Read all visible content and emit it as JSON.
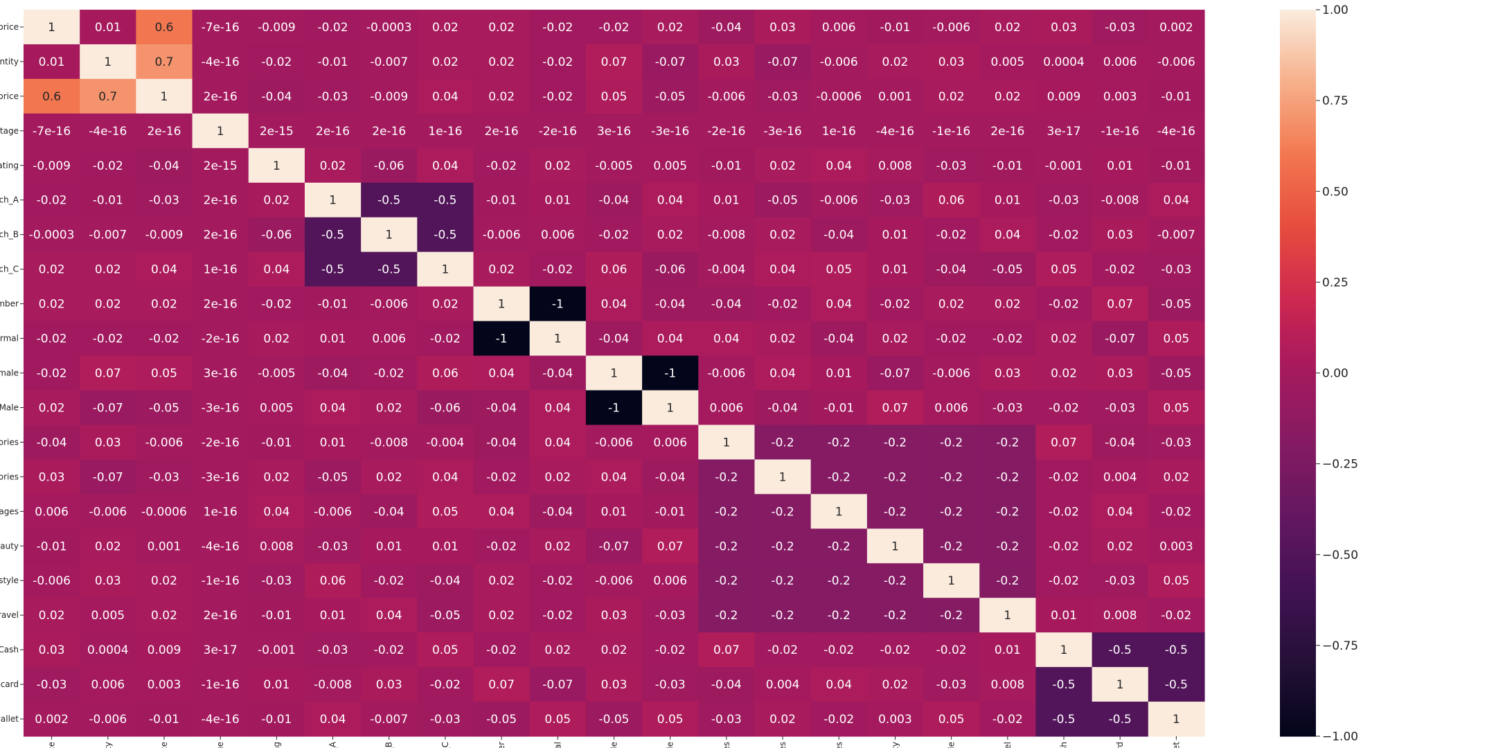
{
  "chart_data": {
    "type": "heatmap",
    "row_labels": [
      "_price",
      "antity",
      "_price",
      "ntage",
      "rating",
      "nch_A",
      "nch_B",
      "nch_C",
      "ember",
      "ormal",
      "emale",
      "_Male",
      "sories",
      "sories",
      "erages",
      "beauty",
      "estyle",
      "travel",
      "_Cash",
      "t card",
      "wallet"
    ],
    "col_labels": [
      "rice",
      "ntity",
      "rice",
      "tage",
      "ating",
      "h_A",
      "h_B",
      "h_C",
      "mber",
      "ormal",
      "male",
      "Male",
      "ories",
      "ories",
      "ages",
      "eauty",
      "style",
      "avel",
      "Cash",
      "card",
      "allet"
    ],
    "values": [
      [
        "1",
        "0.01",
        "0.6",
        "-7e-16",
        "-0.009",
        "-0.02",
        "-0.0003",
        "0.02",
        "0.02",
        "-0.02",
        "-0.02",
        "0.02",
        "-0.04",
        "0.03",
        "0.006",
        "-0.01",
        "-0.006",
        "0.02",
        "0.03",
        "-0.03",
        "0.002"
      ],
      [
        "0.01",
        "1",
        "0.7",
        "-4e-16",
        "-0.02",
        "-0.01",
        "-0.007",
        "0.02",
        "0.02",
        "-0.02",
        "0.07",
        "-0.07",
        "0.03",
        "-0.07",
        "-0.006",
        "0.02",
        "0.03",
        "0.005",
        "0.0004",
        "0.006",
        "-0.006"
      ],
      [
        "0.6",
        "0.7",
        "1",
        "2e-16",
        "-0.04",
        "-0.03",
        "-0.009",
        "0.04",
        "0.02",
        "-0.02",
        "0.05",
        "-0.05",
        "-0.006",
        "-0.03",
        "-0.0006",
        "0.001",
        "0.02",
        "0.02",
        "0.009",
        "0.003",
        "-0.01"
      ],
      [
        "-7e-16",
        "-4e-16",
        "2e-16",
        "1",
        "2e-15",
        "2e-16",
        "2e-16",
        "1e-16",
        "2e-16",
        "-2e-16",
        "3e-16",
        "-3e-16",
        "-2e-16",
        "-3e-16",
        "1e-16",
        "-4e-16",
        "-1e-16",
        "2e-16",
        "3e-17",
        "-1e-16",
        "-4e-16"
      ],
      [
        "-0.009",
        "-0.02",
        "-0.04",
        "2e-15",
        "1",
        "0.02",
        "-0.06",
        "0.04",
        "-0.02",
        "0.02",
        "-0.005",
        "0.005",
        "-0.01",
        "0.02",
        "0.04",
        "0.008",
        "-0.03",
        "-0.01",
        "-0.001",
        "0.01",
        "-0.01"
      ],
      [
        "-0.02",
        "-0.01",
        "-0.03",
        "2e-16",
        "0.02",
        "1",
        "-0.5",
        "-0.5",
        "-0.01",
        "0.01",
        "-0.04",
        "0.04",
        "0.01",
        "-0.05",
        "-0.006",
        "-0.03",
        "0.06",
        "0.01",
        "-0.03",
        "-0.008",
        "0.04"
      ],
      [
        "-0.0003",
        "-0.007",
        "-0.009",
        "2e-16",
        "-0.06",
        "-0.5",
        "1",
        "-0.5",
        "-0.006",
        "0.006",
        "-0.02",
        "0.02",
        "-0.008",
        "0.02",
        "-0.04",
        "0.01",
        "-0.02",
        "0.04",
        "-0.02",
        "0.03",
        "-0.007"
      ],
      [
        "0.02",
        "0.02",
        "0.04",
        "1e-16",
        "0.04",
        "-0.5",
        "-0.5",
        "1",
        "0.02",
        "-0.02",
        "0.06",
        "-0.06",
        "-0.004",
        "0.04",
        "0.05",
        "0.01",
        "-0.04",
        "-0.05",
        "0.05",
        "-0.02",
        "-0.03"
      ],
      [
        "0.02",
        "0.02",
        "0.02",
        "2e-16",
        "-0.02",
        "-0.01",
        "-0.006",
        "0.02",
        "1",
        "-1",
        "0.04",
        "-0.04",
        "-0.04",
        "-0.02",
        "0.04",
        "-0.02",
        "0.02",
        "0.02",
        "-0.02",
        "0.07",
        "-0.05"
      ],
      [
        "-0.02",
        "-0.02",
        "-0.02",
        "-2e-16",
        "0.02",
        "0.01",
        "0.006",
        "-0.02",
        "-1",
        "1",
        "-0.04",
        "0.04",
        "0.04",
        "0.02",
        "-0.04",
        "0.02",
        "-0.02",
        "-0.02",
        "0.02",
        "-0.07",
        "0.05"
      ],
      [
        "-0.02",
        "0.07",
        "0.05",
        "3e-16",
        "-0.005",
        "-0.04",
        "-0.02",
        "0.06",
        "0.04",
        "-0.04",
        "1",
        "-1",
        "-0.006",
        "0.04",
        "0.01",
        "-0.07",
        "-0.006",
        "0.03",
        "0.02",
        "0.03",
        "-0.05"
      ],
      [
        "0.02",
        "-0.07",
        "-0.05",
        "-3e-16",
        "0.005",
        "0.04",
        "0.02",
        "-0.06",
        "-0.04",
        "0.04",
        "-1",
        "1",
        "0.006",
        "-0.04",
        "-0.01",
        "0.07",
        "0.006",
        "-0.03",
        "-0.02",
        "-0.03",
        "0.05"
      ],
      [
        "-0.04",
        "0.03",
        "-0.006",
        "-2e-16",
        "-0.01",
        "0.01",
        "-0.008",
        "-0.004",
        "-0.04",
        "0.04",
        "-0.006",
        "0.006",
        "1",
        "-0.2",
        "-0.2",
        "-0.2",
        "-0.2",
        "-0.2",
        "0.07",
        "-0.04",
        "-0.03"
      ],
      [
        "0.03",
        "-0.07",
        "-0.03",
        "-3e-16",
        "0.02",
        "-0.05",
        "0.02",
        "0.04",
        "-0.02",
        "0.02",
        "0.04",
        "-0.04",
        "-0.2",
        "1",
        "-0.2",
        "-0.2",
        "-0.2",
        "-0.2",
        "-0.02",
        "0.004",
        "0.02"
      ],
      [
        "0.006",
        "-0.006",
        "-0.0006",
        "1e-16",
        "0.04",
        "-0.006",
        "-0.04",
        "0.05",
        "0.04",
        "-0.04",
        "0.01",
        "-0.01",
        "-0.2",
        "-0.2",
        "1",
        "-0.2",
        "-0.2",
        "-0.2",
        "-0.02",
        "0.04",
        "-0.02"
      ],
      [
        "-0.01",
        "0.02",
        "0.001",
        "-4e-16",
        "0.008",
        "-0.03",
        "0.01",
        "0.01",
        "-0.02",
        "0.02",
        "-0.07",
        "0.07",
        "-0.2",
        "-0.2",
        "-0.2",
        "1",
        "-0.2",
        "-0.2",
        "-0.02",
        "0.02",
        "0.003"
      ],
      [
        "-0.006",
        "0.03",
        "0.02",
        "-1e-16",
        "-0.03",
        "0.06",
        "-0.02",
        "-0.04",
        "0.02",
        "-0.02",
        "-0.006",
        "0.006",
        "-0.2",
        "-0.2",
        "-0.2",
        "-0.2",
        "1",
        "-0.2",
        "-0.02",
        "-0.03",
        "0.05"
      ],
      [
        "0.02",
        "0.005",
        "0.02",
        "2e-16",
        "-0.01",
        "0.01",
        "0.04",
        "-0.05",
        "0.02",
        "-0.02",
        "0.03",
        "-0.03",
        "-0.2",
        "-0.2",
        "-0.2",
        "-0.2",
        "-0.2",
        "1",
        "0.01",
        "0.008",
        "-0.02"
      ],
      [
        "0.03",
        "0.0004",
        "0.009",
        "3e-17",
        "-0.001",
        "-0.03",
        "-0.02",
        "0.05",
        "-0.02",
        "0.02",
        "0.02",
        "-0.02",
        "0.07",
        "-0.02",
        "-0.02",
        "-0.02",
        "-0.02",
        "0.01",
        "1",
        "-0.5",
        "-0.5"
      ],
      [
        "-0.03",
        "0.006",
        "0.003",
        "-1e-16",
        "0.01",
        "-0.008",
        "0.03",
        "-0.02",
        "0.07",
        "-0.07",
        "0.03",
        "-0.03",
        "-0.04",
        "0.004",
        "0.04",
        "0.02",
        "-0.03",
        "0.008",
        "-0.5",
        "1",
        "-0.5"
      ],
      [
        "0.002",
        "-0.006",
        "-0.01",
        "-4e-16",
        "-0.01",
        "0.04",
        "-0.007",
        "-0.03",
        "-0.05",
        "0.05",
        "-0.05",
        "0.05",
        "-0.03",
        "0.02",
        "-0.02",
        "0.003",
        "0.05",
        "-0.02",
        "-0.5",
        "-0.5",
        "1"
      ]
    ],
    "colorbar": {
      "range": [
        -1,
        1
      ],
      "ticks": [
        "1.00",
        "0.75",
        "0.50",
        "0.25",
        "0.00",
        "−0.25",
        "−0.50",
        "−0.75",
        "−1.00"
      ],
      "tick_values": [
        1,
        0.75,
        0.5,
        0.25,
        0,
        -0.25,
        -0.5,
        -0.75,
        -1
      ],
      "colormap": "rocket"
    }
  }
}
